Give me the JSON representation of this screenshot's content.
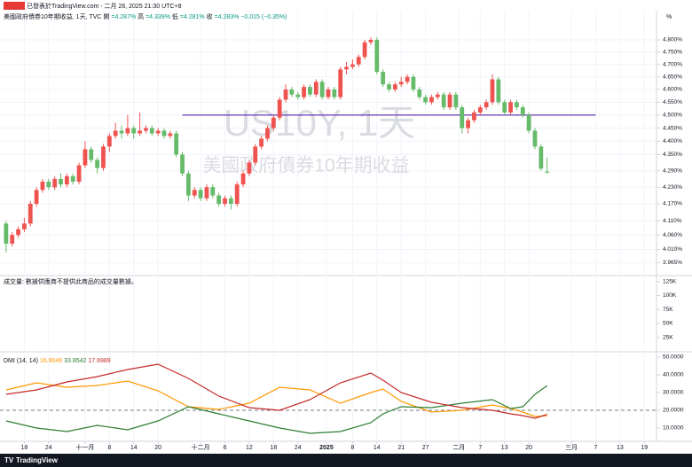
{
  "header": {
    "published": "已發表於TradingView.com - 二月 26, 2025 21:30 UTC+8",
    "logo": "TradingView"
  },
  "chart_data": [
    {
      "type": "candlestick",
      "title": "美國政府債券10年期收益, 1天, TVC",
      "legend": [
        {
          "label": "開",
          "value": "=4.287%"
        },
        {
          "label": "高",
          "value": "=4.339%"
        },
        {
          "label": "低",
          "value": "=4.281%"
        },
        {
          "label": "收",
          "value": "=4.283%"
        }
      ],
      "change": "−0.015 (−0.35%)",
      "unit": "%",
      "watermark": "US10Y, 1天",
      "watermark_subtitle": "美國政府債券10年期收益",
      "up_color": "#ef5350",
      "down_color": "#66bb6a",
      "log_scale": true,
      "grid": true,
      "ylim": [
        3.924,
        4.892
      ],
      "yticks": [
        {
          "value": 4.8,
          "label": "4.800%"
        },
        {
          "value": 4.75,
          "label": "4.750%"
        },
        {
          "value": 4.7,
          "label": "4.700%"
        },
        {
          "value": 4.65,
          "label": "4.650%"
        },
        {
          "value": 4.6,
          "label": "4.600%"
        },
        {
          "value": 4.55,
          "label": "4.550%"
        },
        {
          "value": 4.5,
          "label": "4.500%"
        },
        {
          "value": 4.45,
          "label": "4.450%"
        },
        {
          "value": 4.4,
          "label": "4.400%"
        },
        {
          "value": 4.35,
          "label": "4.350%"
        },
        {
          "value": 4.29,
          "label": "4.290%"
        },
        {
          "value": 4.23,
          "label": "4.230%"
        },
        {
          "value": 4.17,
          "label": "4.170%"
        },
        {
          "value": 4.11,
          "label": "4.110%"
        },
        {
          "value": 4.06,
          "label": "4.060%"
        },
        {
          "value": 4.01,
          "label": "4.010%"
        },
        {
          "value": 3.965,
          "label": "3.965%"
        }
      ],
      "xlim": [
        -1,
        107
      ],
      "xticks": [
        {
          "value": 3,
          "label": "18"
        },
        {
          "value": 7,
          "label": "24"
        },
        {
          "value": 13,
          "label": "十一月"
        },
        {
          "value": 17,
          "label": "8"
        },
        {
          "value": 21,
          "label": "14"
        },
        {
          "value": 25,
          "label": "20"
        },
        {
          "value": 32,
          "label": "十二月"
        },
        {
          "value": 36,
          "label": "6"
        },
        {
          "value": 40,
          "label": "12"
        },
        {
          "value": 44,
          "label": "18"
        },
        {
          "value": 48,
          "label": "24"
        },
        {
          "value": 52.7,
          "label": "2025"
        },
        {
          "value": 57,
          "label": "8"
        },
        {
          "value": 61,
          "label": "14"
        },
        {
          "value": 65,
          "label": "21"
        },
        {
          "value": 69,
          "label": "27"
        },
        {
          "value": 74.5,
          "label": "二月"
        },
        {
          "value": 78,
          "label": "7"
        },
        {
          "value": 82,
          "label": "13"
        },
        {
          "value": 86,
          "label": "20"
        },
        {
          "value": 93,
          "label": "三月"
        },
        {
          "value": 97,
          "label": "7"
        },
        {
          "value": 101,
          "label": "13"
        },
        {
          "value": 105,
          "label": "19"
        }
      ],
      "trendline": {
        "value": 4.5,
        "x": [
          29,
          97
        ],
        "color": "#673ab7"
      },
      "open": [
        4.1,
        4.03,
        4.06,
        4.08,
        4.1,
        4.17,
        4.22,
        4.25,
        4.23,
        4.26,
        4.24,
        4.27,
        4.25,
        4.31,
        4.37,
        4.33,
        4.3,
        4.38,
        4.42,
        4.44,
        4.43,
        4.45,
        4.43,
        4.44,
        4.45,
        4.43,
        4.44,
        4.42,
        4.43,
        4.35,
        4.28,
        4.2,
        4.22,
        4.19,
        4.23,
        4.2,
        4.17,
        4.19,
        4.17,
        4.24,
        4.28,
        4.32,
        4.38,
        4.41,
        4.45,
        4.49,
        4.56,
        4.6,
        4.58,
        4.57,
        4.61,
        4.58,
        4.63,
        4.57,
        4.6,
        4.57,
        4.68,
        4.69,
        4.7,
        4.73,
        4.79,
        4.8,
        4.67,
        4.62,
        4.6,
        4.62,
        4.63,
        4.65,
        4.6,
        4.57,
        4.55,
        4.57,
        4.58,
        4.53,
        4.58,
        4.53,
        4.45,
        4.48,
        4.51,
        4.53,
        4.55,
        4.64,
        4.55,
        4.51,
        4.55,
        4.53,
        4.5,
        4.44,
        4.38,
        4.287
      ],
      "high": [
        4.11,
        4.07,
        4.09,
        4.12,
        4.18,
        4.23,
        4.26,
        4.26,
        4.27,
        4.28,
        4.28,
        4.28,
        4.32,
        4.4,
        4.38,
        4.34,
        4.39,
        4.43,
        4.47,
        4.46,
        4.5,
        4.46,
        4.51,
        4.46,
        4.46,
        4.45,
        4.45,
        4.44,
        4.44,
        4.36,
        4.29,
        4.23,
        4.23,
        4.24,
        4.24,
        4.21,
        4.2,
        4.2,
        4.25,
        4.29,
        4.33,
        4.39,
        4.42,
        4.46,
        4.5,
        4.57,
        4.62,
        4.61,
        4.59,
        4.62,
        4.62,
        4.64,
        4.64,
        4.61,
        4.61,
        4.69,
        4.71,
        4.72,
        4.74,
        4.8,
        4.81,
        4.81,
        4.68,
        4.63,
        4.63,
        4.65,
        4.66,
        4.66,
        4.61,
        4.58,
        4.58,
        4.59,
        4.59,
        4.59,
        4.59,
        4.54,
        4.49,
        4.52,
        4.54,
        4.56,
        4.66,
        4.65,
        4.56,
        4.56,
        4.56,
        4.54,
        4.51,
        4.45,
        4.39,
        4.339
      ],
      "low": [
        4.0,
        4.02,
        4.05,
        4.07,
        4.09,
        4.16,
        4.21,
        4.22,
        4.22,
        4.23,
        4.23,
        4.24,
        4.24,
        4.3,
        4.32,
        4.28,
        4.29,
        4.36,
        4.41,
        4.41,
        4.42,
        4.41,
        4.42,
        4.43,
        4.42,
        4.42,
        4.41,
        4.41,
        4.34,
        4.27,
        4.18,
        4.19,
        4.18,
        4.18,
        4.19,
        4.16,
        4.16,
        4.15,
        4.16,
        4.23,
        4.27,
        4.31,
        4.37,
        4.4,
        4.44,
        4.48,
        4.55,
        4.57,
        4.56,
        4.56,
        4.57,
        4.57,
        4.56,
        4.56,
        4.56,
        4.56,
        4.66,
        4.68,
        4.69,
        4.72,
        4.78,
        4.66,
        4.61,
        4.59,
        4.59,
        4.61,
        4.62,
        4.59,
        4.56,
        4.54,
        4.54,
        4.56,
        4.52,
        4.52,
        4.52,
        4.43,
        4.43,
        4.47,
        4.5,
        4.52,
        4.54,
        4.54,
        4.5,
        4.5,
        4.52,
        4.49,
        4.43,
        4.37,
        4.29,
        4.281
      ],
      "close": [
        4.03,
        4.06,
        4.08,
        4.1,
        4.17,
        4.22,
        4.25,
        4.23,
        4.26,
        4.24,
        4.27,
        4.25,
        4.31,
        4.37,
        4.33,
        4.3,
        4.38,
        4.42,
        4.44,
        4.43,
        4.45,
        4.43,
        4.44,
        4.45,
        4.43,
        4.44,
        4.42,
        4.43,
        4.35,
        4.28,
        4.2,
        4.22,
        4.19,
        4.23,
        4.2,
        4.17,
        4.19,
        4.17,
        4.24,
        4.28,
        4.32,
        4.38,
        4.41,
        4.45,
        4.49,
        4.56,
        4.6,
        4.58,
        4.57,
        4.61,
        4.58,
        4.63,
        4.57,
        4.6,
        4.57,
        4.68,
        4.69,
        4.7,
        4.73,
        4.79,
        4.8,
        4.67,
        4.62,
        4.6,
        4.62,
        4.63,
        4.65,
        4.6,
        4.57,
        4.55,
        4.57,
        4.58,
        4.53,
        4.58,
        4.53,
        4.45,
        4.48,
        4.51,
        4.53,
        4.55,
        4.64,
        4.55,
        4.51,
        4.55,
        4.53,
        4.5,
        4.44,
        4.38,
        4.298,
        4.283
      ]
    },
    {
      "type": "volume",
      "title": "成交量: 數據供應商不提供此商品的成交量數據。",
      "ylim": [
        -1150,
        134230
      ],
      "yticks": [
        {
          "value": 125000,
          "label": "125K"
        },
        {
          "value": 100000,
          "label": "100K"
        },
        {
          "value": 75000,
          "label": "75K"
        },
        {
          "value": 50000,
          "label": "50K"
        },
        {
          "value": 25000,
          "label": "25K"
        }
      ]
    },
    {
      "type": "line",
      "title": "DMI (14, 14)",
      "ylim": [
        1.5,
        52.5
      ],
      "yticks": [
        {
          "value": 50,
          "label": "50.0000"
        },
        {
          "value": 40,
          "label": "40.0000"
        },
        {
          "value": 30,
          "label": "30.0000"
        },
        {
          "value": 20,
          "label": "20.0000"
        },
        {
          "value": 10,
          "label": "10.0000"
        }
      ],
      "hline": 20,
      "x": [
        0,
        5,
        10,
        15,
        20,
        25,
        30,
        35,
        40,
        45,
        50,
        55,
        60,
        62,
        65,
        70,
        75,
        80,
        83,
        85,
        87,
        89
      ],
      "series": [
        {
          "color": "#ff9800",
          "values": [
            31.5,
            35.5,
            33,
            34,
            36.5,
            31,
            22,
            20.5,
            24,
            33,
            31.5,
            24,
            30,
            32,
            25,
            19,
            20,
            23,
            21,
            19,
            16.5,
            16.9049
          ]
        },
        {
          "color": "#2e7d32",
          "values": [
            14,
            10,
            8,
            11.5,
            9,
            14,
            22,
            18,
            14,
            10,
            7,
            8,
            13,
            18,
            22,
            21.5,
            24,
            26,
            21,
            22,
            29,
            33.8542
          ]
        },
        {
          "color": "#c62828",
          "values": [
            29,
            31.5,
            36,
            39,
            43,
            46,
            38,
            28,
            21.5,
            20,
            26,
            35.5,
            41,
            37,
            30,
            24.5,
            21.5,
            20,
            18,
            17,
            15.5,
            17.6989
          ]
        }
      ]
    }
  ]
}
